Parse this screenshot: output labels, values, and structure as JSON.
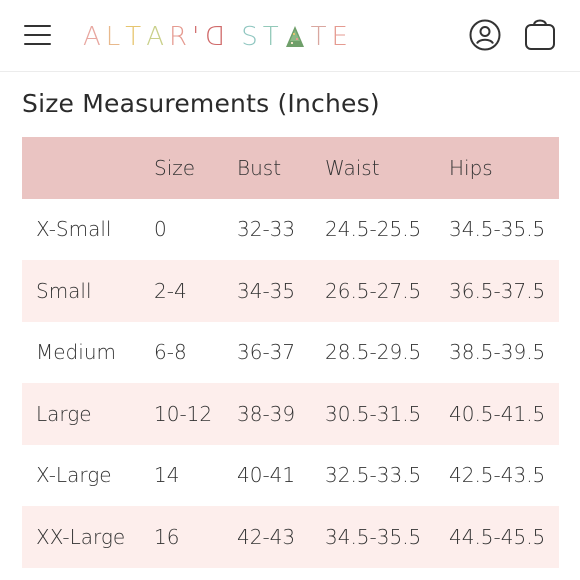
{
  "header": {
    "menu_icon": "hamburger-menu-icon",
    "logo": {
      "text": "ALTAR'D STATE",
      "letters": [
        {
          "ch": "A",
          "color": "#e8a7a0"
        },
        {
          "ch": "L",
          "color": "#e8b98c"
        },
        {
          "ch": "T",
          "color": "#e6c56f"
        },
        {
          "ch": "A",
          "color": "#c9d08a"
        },
        {
          "ch": "R",
          "color": "#e59a90"
        },
        {
          "ch": "'",
          "color": "#d06a6a"
        },
        {
          "ch": "D",
          "color": "#d06a6a"
        },
        {
          "ch": "S",
          "color": "#8fc6c0"
        },
        {
          "ch": "T",
          "color": "#93c9b9"
        },
        {
          "ch": "A",
          "color": "#6f9f6a"
        },
        {
          "ch": "T",
          "color": "#d9a7a0"
        },
        {
          "ch": "E",
          "color": "#e59a90"
        }
      ]
    },
    "account_icon": "user-account-icon",
    "bag_icon": "shopping-bag-icon"
  },
  "page": {
    "title": "Size Measurements (Inches)"
  },
  "table": {
    "headers": [
      "",
      "Size",
      "Bust",
      "Waist",
      "Hips"
    ],
    "rows": [
      [
        "X-Small",
        "0",
        "32-33",
        "24.5-25.5",
        "34.5-35.5"
      ],
      [
        "Small",
        "2-4",
        "34-35",
        "26.5-27.5",
        "36.5-37.5"
      ],
      [
        "Medium",
        "6-8",
        "36-37",
        "28.5-29.5",
        "38.5-39.5"
      ],
      [
        "Large",
        "10-12",
        "38-39",
        "30.5-31.5",
        "40.5-41.5"
      ],
      [
        "X-Large",
        "14",
        "40-41",
        "32.5-33.5",
        "42.5-43.5"
      ],
      [
        "XX-Large",
        "16",
        "42-43",
        "34.5-35.5",
        "44.5-45.5"
      ]
    ]
  },
  "colors": {
    "header_row": "#eac4c2",
    "alt_row": "#fdeeec"
  }
}
